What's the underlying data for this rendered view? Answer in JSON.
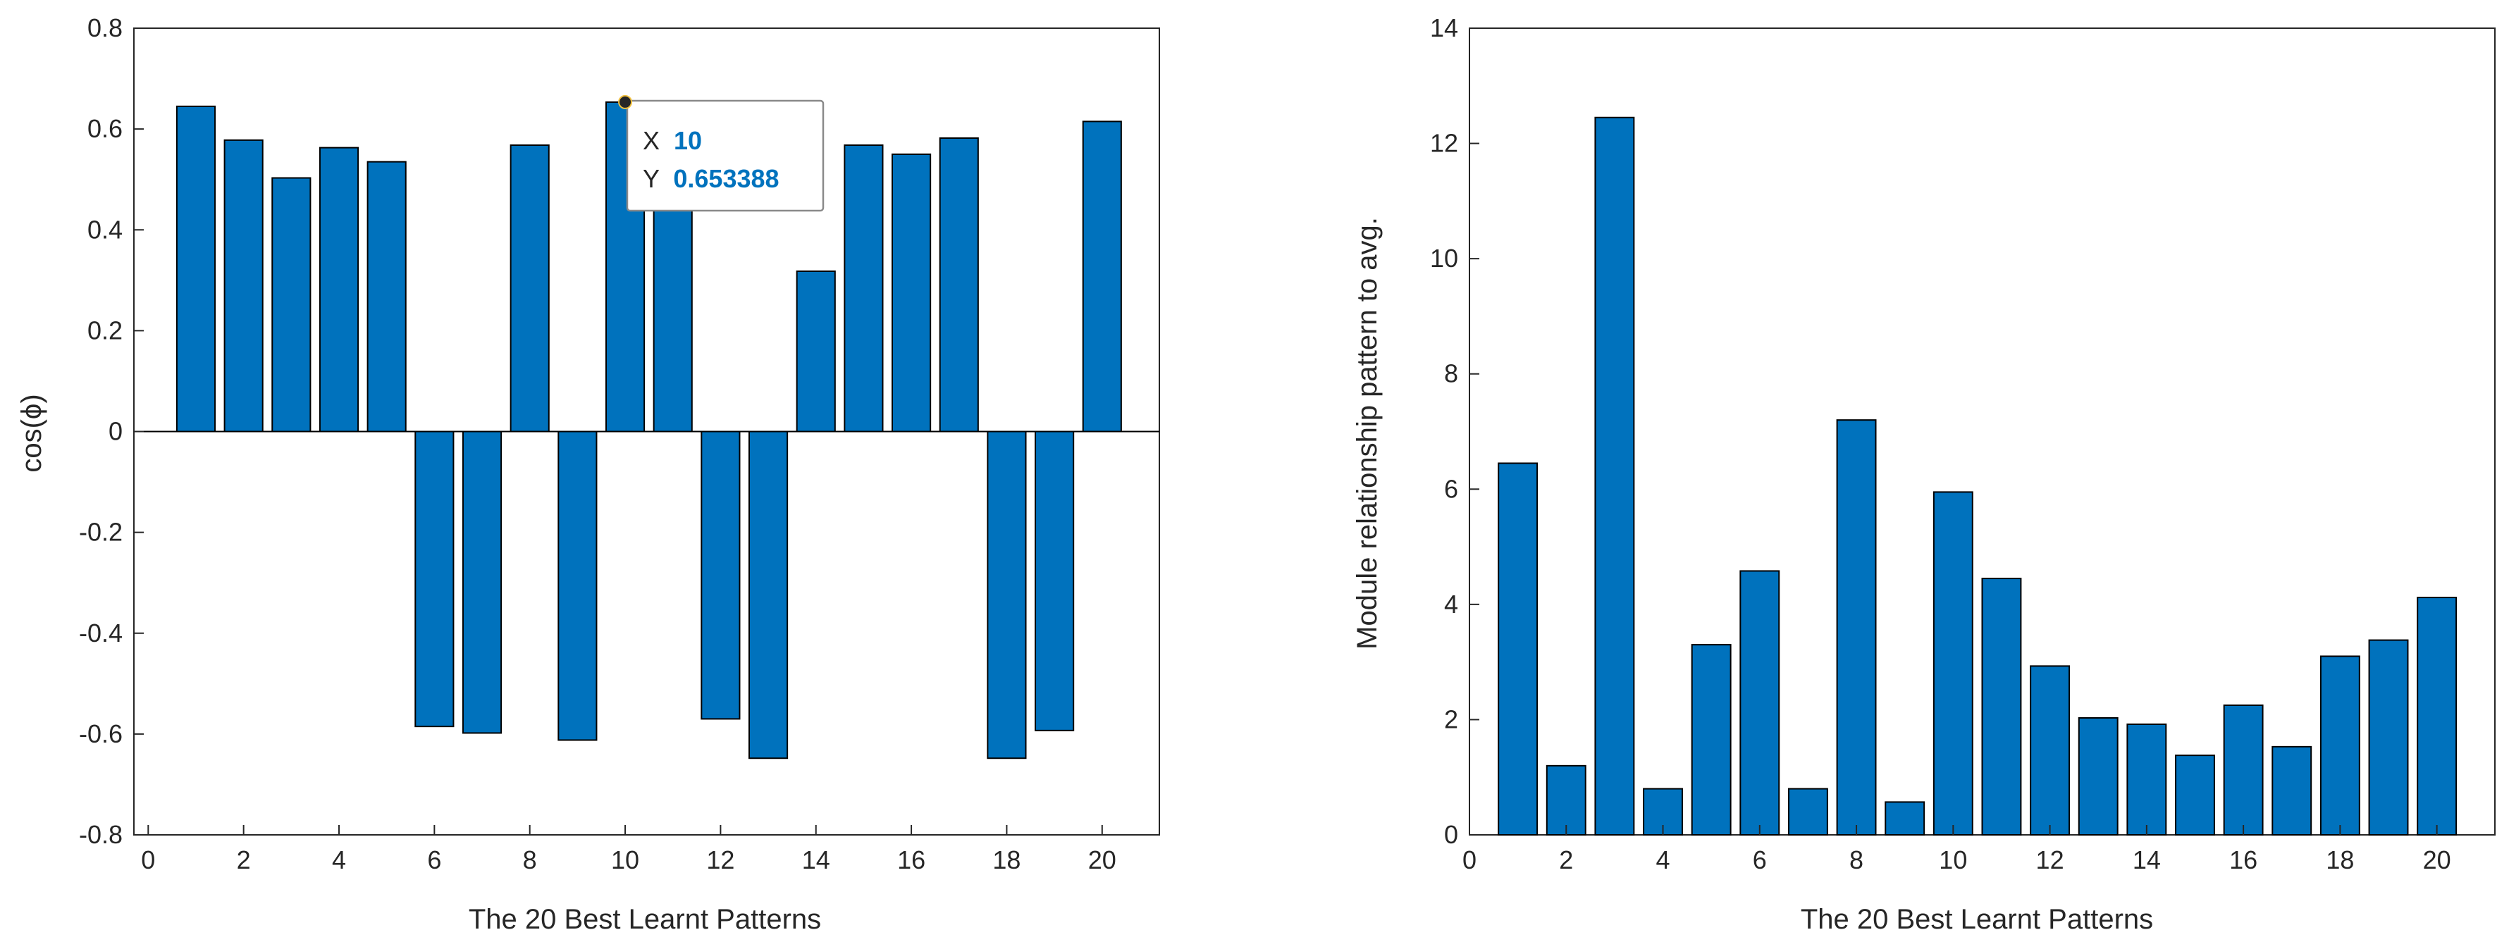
{
  "chart_data": [
    {
      "type": "bar",
      "x": [
        1,
        2,
        3,
        4,
        5,
        6,
        7,
        8,
        9,
        10,
        11,
        12,
        13,
        14,
        15,
        16,
        17,
        18,
        19,
        20
      ],
      "values": [
        0.645,
        0.578,
        0.503,
        0.563,
        0.535,
        -0.585,
        -0.598,
        0.568,
        -0.612,
        0.653388,
        0.628,
        -0.57,
        -0.648,
        0.318,
        0.568,
        0.55,
        0.582,
        -0.648,
        -0.593,
        0.615
      ],
      "xlabel": "The 20 Best Learnt Patterns",
      "ylabel": "cos(ϕ)",
      "xlim": [
        -0.3,
        21.2
      ],
      "ylim": [
        -0.8,
        0.8
      ],
      "xticks": [
        0,
        2,
        4,
        6,
        8,
        10,
        12,
        14,
        16,
        18,
        20
      ],
      "xtick_labels": [
        "0",
        "2",
        "4",
        "6",
        "8",
        "10",
        "12",
        "14",
        "16",
        "18",
        "20"
      ],
      "yticks": [
        -0.8,
        -0.6,
        -0.4,
        -0.2,
        0,
        0.2,
        0.4,
        0.6,
        0.8
      ],
      "ytick_labels": [
        "-0.8",
        "-0.6",
        "-0.4",
        "-0.2",
        "0",
        "0.2",
        "0.4",
        "0.6",
        "0.8"
      ],
      "bar_color": "#0072BD",
      "grid": false,
      "datatip": {
        "x_label": "X",
        "x_value": "10",
        "y_label": "Y",
        "y_value": "0.653388",
        "x": 10,
        "y": 0.653388
      }
    },
    {
      "type": "bar",
      "x": [
        1,
        2,
        3,
        4,
        5,
        6,
        7,
        8,
        9,
        10,
        11,
        12,
        13,
        14,
        15,
        16,
        17,
        18,
        19,
        20
      ],
      "values": [
        6.45,
        1.2,
        12.45,
        0.8,
        3.3,
        4.58,
        0.8,
        7.2,
        0.57,
        5.95,
        4.45,
        2.93,
        2.03,
        1.92,
        1.38,
        2.25,
        1.53,
        3.1,
        3.38,
        4.12
      ],
      "xlabel": "The 20 Best Learnt Patterns",
      "ylabel": "Module relationship pattern to avg.",
      "xlim": [
        0,
        21.2
      ],
      "ylim": [
        0,
        14
      ],
      "xticks": [
        0,
        2,
        4,
        6,
        8,
        10,
        12,
        14,
        16,
        18,
        20
      ],
      "xtick_labels": [
        "0",
        "2",
        "4",
        "6",
        "8",
        "10",
        "12",
        "14",
        "16",
        "18",
        "20"
      ],
      "yticks": [
        0,
        2,
        4,
        6,
        8,
        10,
        12,
        14
      ],
      "ytick_labels": [
        "0",
        "2",
        "4",
        "6",
        "8",
        "10",
        "12",
        "14"
      ],
      "bar_color": "#0072BD",
      "grid": false
    }
  ],
  "colors": {
    "bar": "#0072BD",
    "axis": "#262626",
    "datatip_value": "#0072BD",
    "datatip_border": "#8a8a8a"
  }
}
